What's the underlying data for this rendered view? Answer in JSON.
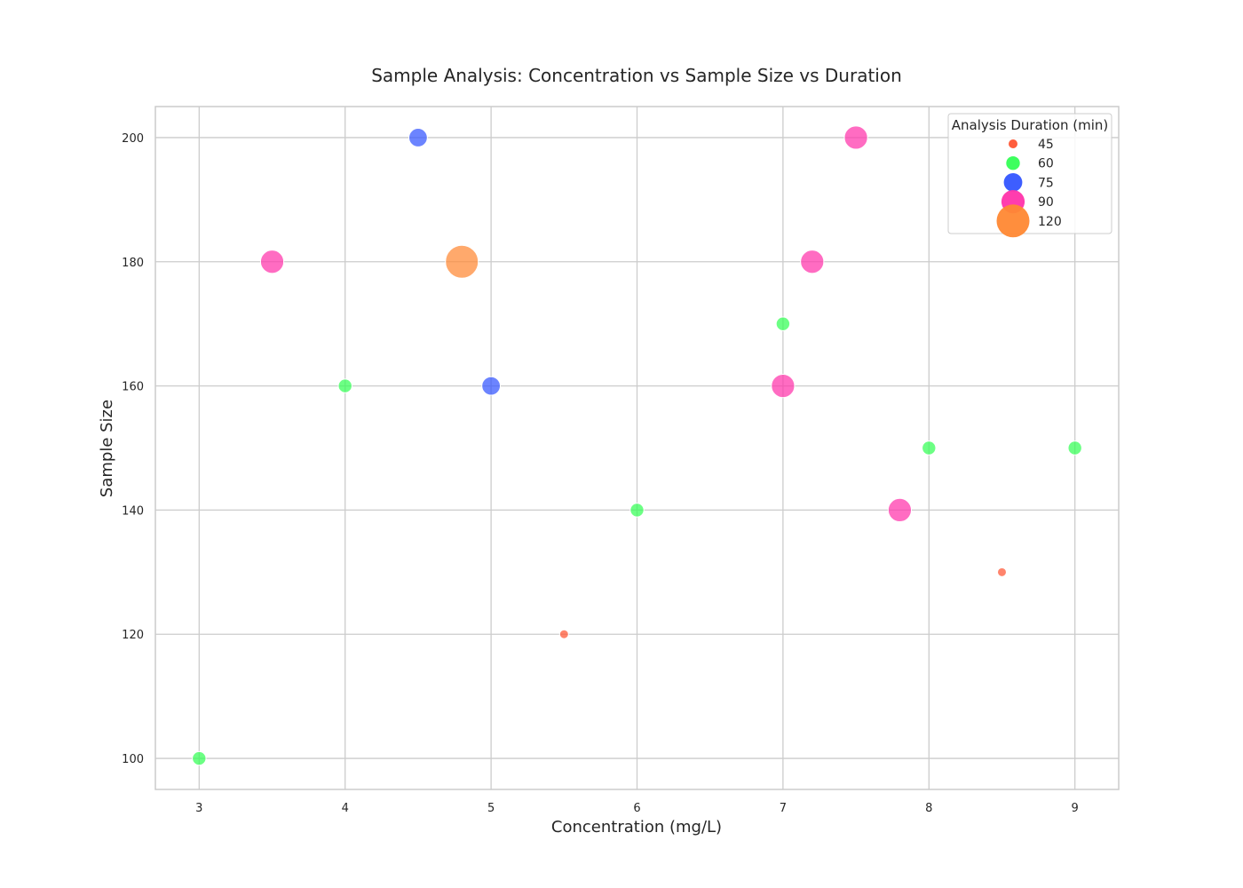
{
  "chart_data": {
    "type": "scatter",
    "title": "Sample Analysis: Concentration vs Sample Size vs Duration",
    "xlabel": "Concentration (mg/L)",
    "ylabel": "Sample Size",
    "xlim": [
      2.7,
      9.3
    ],
    "ylim": [
      95,
      205
    ],
    "xticks": [
      3,
      4,
      5,
      6,
      7,
      8,
      9
    ],
    "yticks": [
      100,
      120,
      140,
      160,
      180,
      200
    ],
    "grid": true,
    "legend": {
      "title": "Analysis Duration (min)",
      "placement": "top-right",
      "entries": [
        {
          "label": "45",
          "value": 45,
          "color": "#ff5533"
        },
        {
          "label": "60",
          "value": 60,
          "color": "#33ff55"
        },
        {
          "label": "75",
          "value": 75,
          "color": "#3355ff"
        },
        {
          "label": "90",
          "value": 90,
          "color": "#ff33aa"
        },
        {
          "label": "120",
          "value": 120,
          "color": "#ff8833"
        }
      ]
    },
    "points": [
      {
        "x": 3.0,
        "y": 100,
        "duration": 60
      },
      {
        "x": 3.5,
        "y": 180,
        "duration": 90
      },
      {
        "x": 4.0,
        "y": 160,
        "duration": 60
      },
      {
        "x": 4.5,
        "y": 200,
        "duration": 75
      },
      {
        "x": 4.8,
        "y": 180,
        "duration": 120
      },
      {
        "x": 5.0,
        "y": 160,
        "duration": 75
      },
      {
        "x": 5.5,
        "y": 120,
        "duration": 45
      },
      {
        "x": 6.0,
        "y": 140,
        "duration": 60
      },
      {
        "x": 7.0,
        "y": 170,
        "duration": 60
      },
      {
        "x": 7.0,
        "y": 160,
        "duration": 90
      },
      {
        "x": 7.2,
        "y": 180,
        "duration": 90
      },
      {
        "x": 7.5,
        "y": 200,
        "duration": 90
      },
      {
        "x": 7.8,
        "y": 140,
        "duration": 90
      },
      {
        "x": 8.0,
        "y": 150,
        "duration": 60
      },
      {
        "x": 8.5,
        "y": 130,
        "duration": 45
      },
      {
        "x": 9.0,
        "y": 150,
        "duration": 60
      }
    ]
  }
}
